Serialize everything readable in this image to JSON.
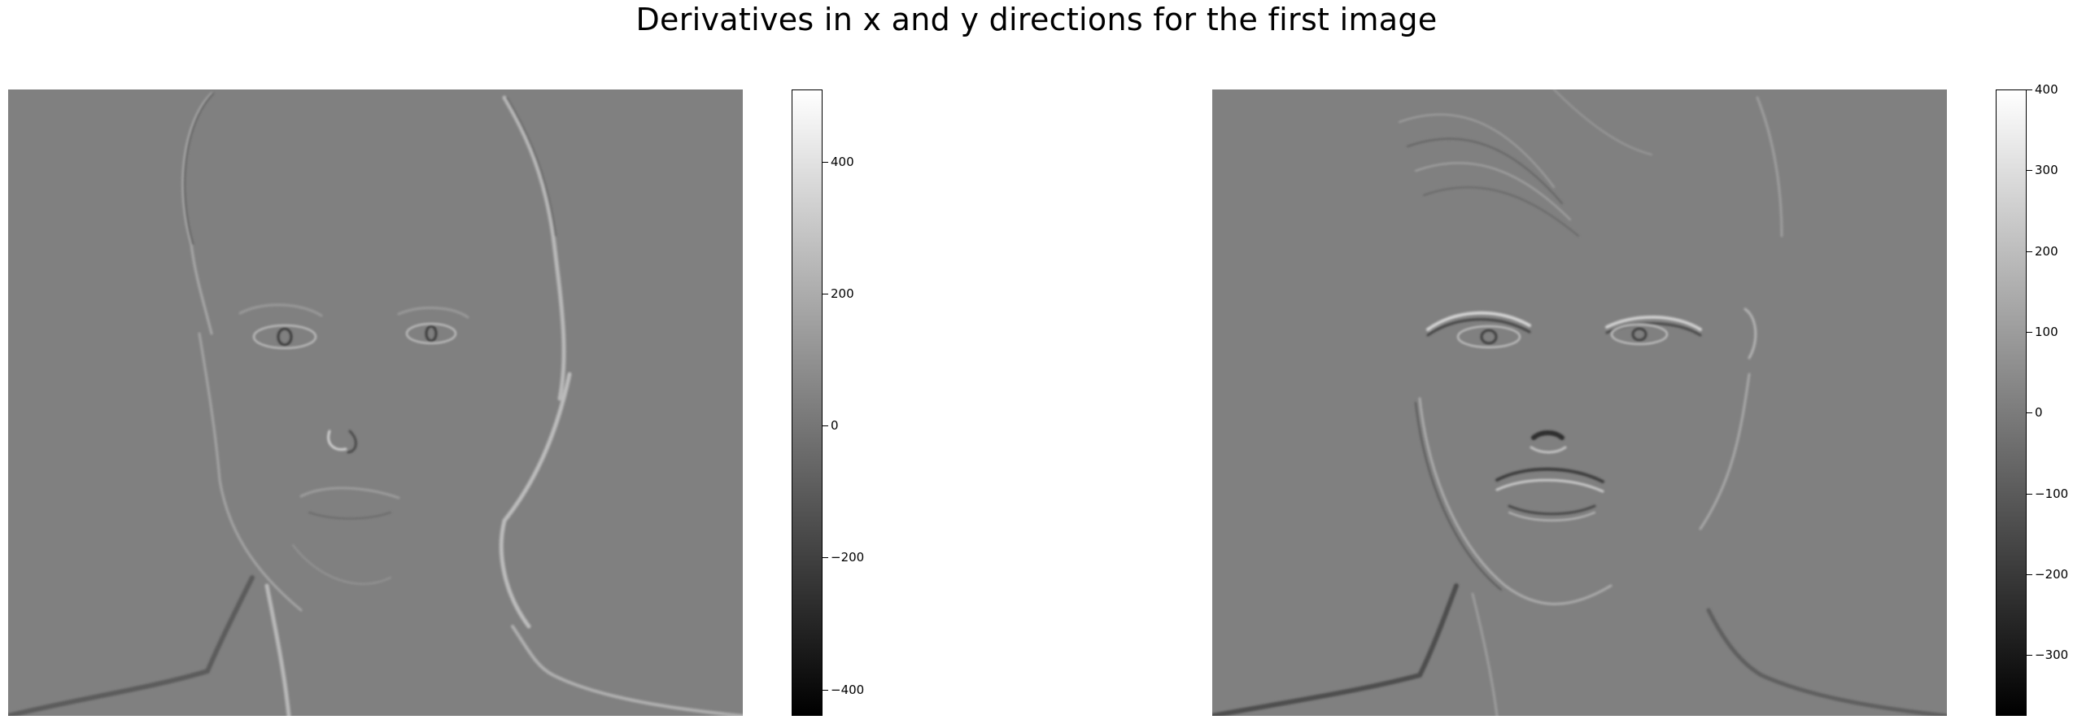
{
  "figure": {
    "title": "Derivatives in x and y directions for the first image"
  },
  "panels": [
    {
      "subject": "derivative-x-image",
      "colorbar": {
        "min": -440,
        "max": 510,
        "ticks": [
          "400",
          "200",
          "0",
          "−200",
          "−400"
        ],
        "tick_values": [
          400,
          200,
          0,
          -200,
          -400
        ]
      }
    },
    {
      "subject": "derivative-y-image",
      "colorbar": {
        "min": -375,
        "max": 400,
        "ticks": [
          "400",
          "300",
          "200",
          "100",
          "0",
          "−100",
          "−200",
          "−300"
        ],
        "tick_values": [
          400,
          300,
          200,
          100,
          0,
          -100,
          -200,
          -300
        ]
      }
    }
  ],
  "colors": {
    "background": "#808080",
    "colormap": "gray"
  }
}
